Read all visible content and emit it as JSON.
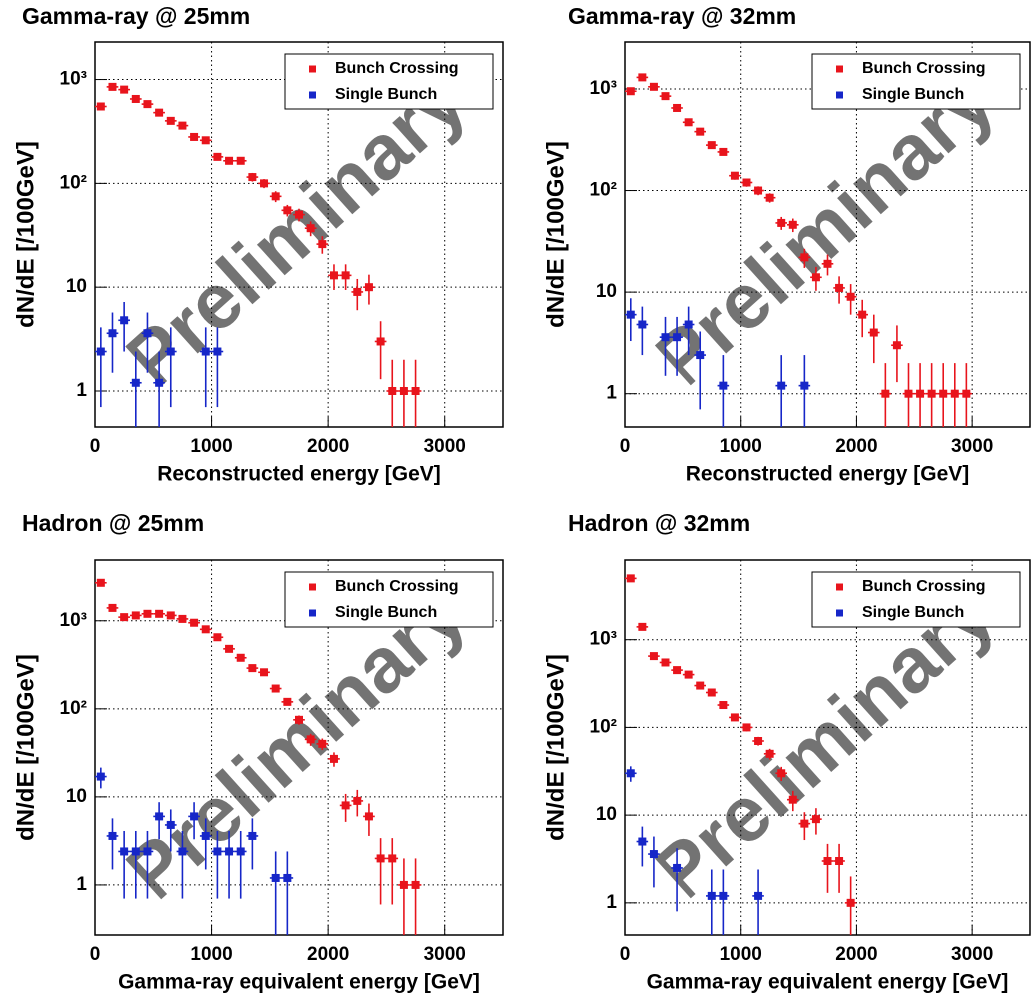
{
  "chart_data": [
    {
      "type": "scatter",
      "title": "Gamma-ray @ 25mm",
      "x_label": "Reconstructed energy [GeV]",
      "y_label": "dN/dE [/100GeV]",
      "watermark": "Preliminary",
      "log_y": true,
      "grid": true,
      "legend": "top-right",
      "xlim": [
        0,
        3500
      ],
      "xticks": [
        0,
        1000,
        2000,
        3000
      ],
      "ylim": [
        0.45,
        2300
      ],
      "yticks": [
        1,
        10,
        {
          "value": 100,
          "label": "10²"
        },
        {
          "value": 1000,
          "label": "10³"
        }
      ],
      "series": [
        {
          "name": "Bunch Crossing",
          "color": "#e8141c",
          "xerr": 50,
          "x": [
            50,
            150,
            250,
            350,
            450,
            550,
            650,
            750,
            850,
            950,
            1050,
            1150,
            1250,
            1350,
            1450,
            1550,
            1650,
            1750,
            1850,
            1950,
            2050,
            2150,
            2250,
            2350,
            2450,
            2550,
            2650,
            2750
          ],
          "values": [
            550,
            850,
            800,
            650,
            580,
            480,
            400,
            360,
            280,
            260,
            180,
            165,
            165,
            115,
            100,
            75,
            55,
            50,
            37,
            26,
            13,
            13,
            9,
            10,
            3,
            1,
            1,
            1
          ],
          "errors": [
            23,
            29,
            28,
            25,
            24,
            22,
            20,
            19,
            17,
            16,
            13,
            13,
            13,
            11,
            10,
            9,
            7,
            7,
            6,
            5,
            3.6,
            3.6,
            3,
            3.2,
            1.7,
            1,
            1,
            1
          ]
        },
        {
          "name": "Single Bunch",
          "color": "#1626c8",
          "xerr": 50,
          "x": [
            50,
            150,
            250,
            350,
            450,
            550,
            650,
            950,
            1050
          ],
          "values": [
            2.4,
            3.6,
            4.8,
            1.2,
            3.6,
            1.2,
            2.4,
            2.4,
            2.4
          ],
          "errors": [
            1.7,
            2.1,
            2.4,
            1.2,
            2.1,
            1.2,
            1.7,
            1.7,
            1.7
          ]
        }
      ]
    },
    {
      "type": "scatter",
      "title": "Gamma-ray @ 32mm",
      "x_label": "Reconstructed energy [GeV]",
      "y_label": "dN/dE [/100GeV]",
      "watermark": "Preliminary",
      "log_y": true,
      "grid": true,
      "legend": "top-right",
      "xlim": [
        0,
        3500
      ],
      "xticks": [
        0,
        1000,
        2000,
        3000
      ],
      "ylim": [
        0.47,
        2900
      ],
      "yticks": [
        1,
        10,
        {
          "value": 100,
          "label": "10²"
        },
        {
          "value": 1000,
          "label": "10³"
        }
      ],
      "series": [
        {
          "name": "Bunch Crossing",
          "color": "#e8141c",
          "xerr": 50,
          "x": [
            50,
            150,
            250,
            350,
            450,
            550,
            650,
            750,
            850,
            950,
            1050,
            1150,
            1250,
            1350,
            1450,
            1550,
            1650,
            1750,
            1850,
            1950,
            2050,
            2150,
            2250,
            2350,
            2450,
            2550,
            2650,
            2750,
            2850,
            2950
          ],
          "values": [
            950,
            1300,
            1050,
            850,
            650,
            470,
            380,
            280,
            240,
            140,
            120,
            100,
            85,
            48,
            46,
            22,
            14,
            19,
            11,
            9,
            6,
            4,
            1,
            3,
            1,
            1,
            1,
            1,
            1,
            1
          ],
          "errors": [
            31,
            36,
            32,
            29,
            25,
            22,
            19,
            17,
            15,
            12,
            11,
            10,
            9,
            7,
            7,
            4.7,
            3.7,
            4.4,
            3.3,
            3,
            2.4,
            2,
            1,
            1.7,
            1,
            1,
            1,
            1,
            1,
            1
          ]
        },
        {
          "name": "Single Bunch",
          "color": "#1626c8",
          "xerr": 50,
          "x": [
            50,
            150,
            350,
            450,
            550,
            650,
            850,
            1350,
            1550
          ],
          "values": [
            6,
            4.8,
            3.6,
            3.6,
            4.8,
            2.4,
            1.2,
            1.2,
            1.2
          ],
          "errors": [
            2.7,
            2.4,
            2.1,
            2.1,
            2.4,
            1.7,
            1.2,
            1.2,
            1.2
          ]
        }
      ]
    },
    {
      "type": "scatter",
      "title": "Hadron @ 25mm",
      "x_label": "Gamma-ray equivalent energy [GeV]",
      "y_label": "dN/dE [/100GeV]",
      "watermark": "Preliminary",
      "log_y": true,
      "grid": true,
      "legend": "top-right",
      "xlim": [
        0,
        3500
      ],
      "xticks": [
        0,
        1000,
        2000,
        3000
      ],
      "ylim": [
        0.27,
        4900
      ],
      "yticks": [
        1,
        10,
        {
          "value": 100,
          "label": "10²"
        },
        {
          "value": 1000,
          "label": "10³"
        }
      ],
      "series": [
        {
          "name": "Bunch Crossing",
          "color": "#e8141c",
          "xerr": 50,
          "x": [
            50,
            150,
            250,
            350,
            450,
            550,
            650,
            750,
            850,
            950,
            1050,
            1150,
            1250,
            1350,
            1450,
            1550,
            1650,
            1750,
            1850,
            1950,
            2050,
            2150,
            2250,
            2350,
            2450,
            2550,
            2650,
            2750
          ],
          "values": [
            2700,
            1400,
            1100,
            1150,
            1200,
            1200,
            1150,
            1050,
            950,
            800,
            650,
            480,
            380,
            290,
            260,
            170,
            120,
            75,
            45,
            40,
            27,
            8,
            9,
            6,
            2,
            2,
            1,
            1
          ],
          "errors": [
            52,
            37,
            33,
            34,
            35,
            35,
            34,
            32,
            31,
            28,
            25,
            22,
            19,
            17,
            16,
            13,
            11,
            9,
            7,
            6,
            5,
            2.8,
            3,
            2.4,
            1.4,
            1.4,
            1,
            1
          ]
        },
        {
          "name": "Single Bunch",
          "color": "#1626c8",
          "xerr": 50,
          "x": [
            50,
            150,
            250,
            350,
            450,
            550,
            650,
            750,
            850,
            950,
            1050,
            1150,
            1250,
            1350,
            1550,
            1650
          ],
          "values": [
            17,
            3.6,
            2.4,
            2.4,
            2.4,
            6,
            4.8,
            2.4,
            6,
            3.6,
            2.4,
            2.4,
            2.4,
            3.6,
            1.2,
            1.2
          ],
          "errors": [
            4.5,
            2.1,
            1.7,
            1.7,
            1.7,
            2.7,
            2.4,
            1.7,
            2.7,
            2.1,
            1.7,
            1.7,
            1.7,
            2.1,
            1.2,
            1.2
          ]
        }
      ]
    },
    {
      "type": "scatter",
      "title": "Hadron @ 32mm",
      "x_label": "Gamma-ray equivalent energy [GeV]",
      "y_label": "dN/dE [/100GeV]",
      "watermark": "Preliminary",
      "log_y": true,
      "grid": true,
      "legend": "top-right",
      "xlim": [
        0,
        3500
      ],
      "xticks": [
        0,
        1000,
        2000,
        3000
      ],
      "ylim": [
        0.43,
        8100
      ],
      "yticks": [
        1,
        10,
        {
          "value": 100,
          "label": "10²"
        },
        {
          "value": 1000,
          "label": "10³"
        }
      ],
      "series": [
        {
          "name": "Bunch Crossing",
          "color": "#e8141c",
          "xerr": 50,
          "x": [
            50,
            150,
            250,
            350,
            450,
            550,
            650,
            750,
            850,
            950,
            1050,
            1150,
            1250,
            1350,
            1450,
            1550,
            1650,
            1750,
            1850,
            1950
          ],
          "values": [
            5000,
            1400,
            650,
            550,
            450,
            400,
            300,
            250,
            180,
            130,
            100,
            70,
            50,
            30,
            15,
            8,
            9,
            3,
            3,
            1
          ],
          "errors": [
            71,
            37,
            25,
            23,
            21,
            20,
            17,
            16,
            13,
            11,
            10,
            8,
            7,
            5.5,
            3.9,
            2.8,
            3,
            1.7,
            1.7,
            1
          ]
        },
        {
          "name": "Single Bunch",
          "color": "#1626c8",
          "xerr": 50,
          "x": [
            50,
            150,
            250,
            450,
            750,
            850,
            1150
          ],
          "values": [
            30,
            5,
            3.6,
            2.5,
            1.2,
            1.2,
            1.2
          ],
          "errors": [
            6,
            2.4,
            2.1,
            1.7,
            1.2,
            1.2,
            1.2
          ]
        }
      ]
    }
  ]
}
